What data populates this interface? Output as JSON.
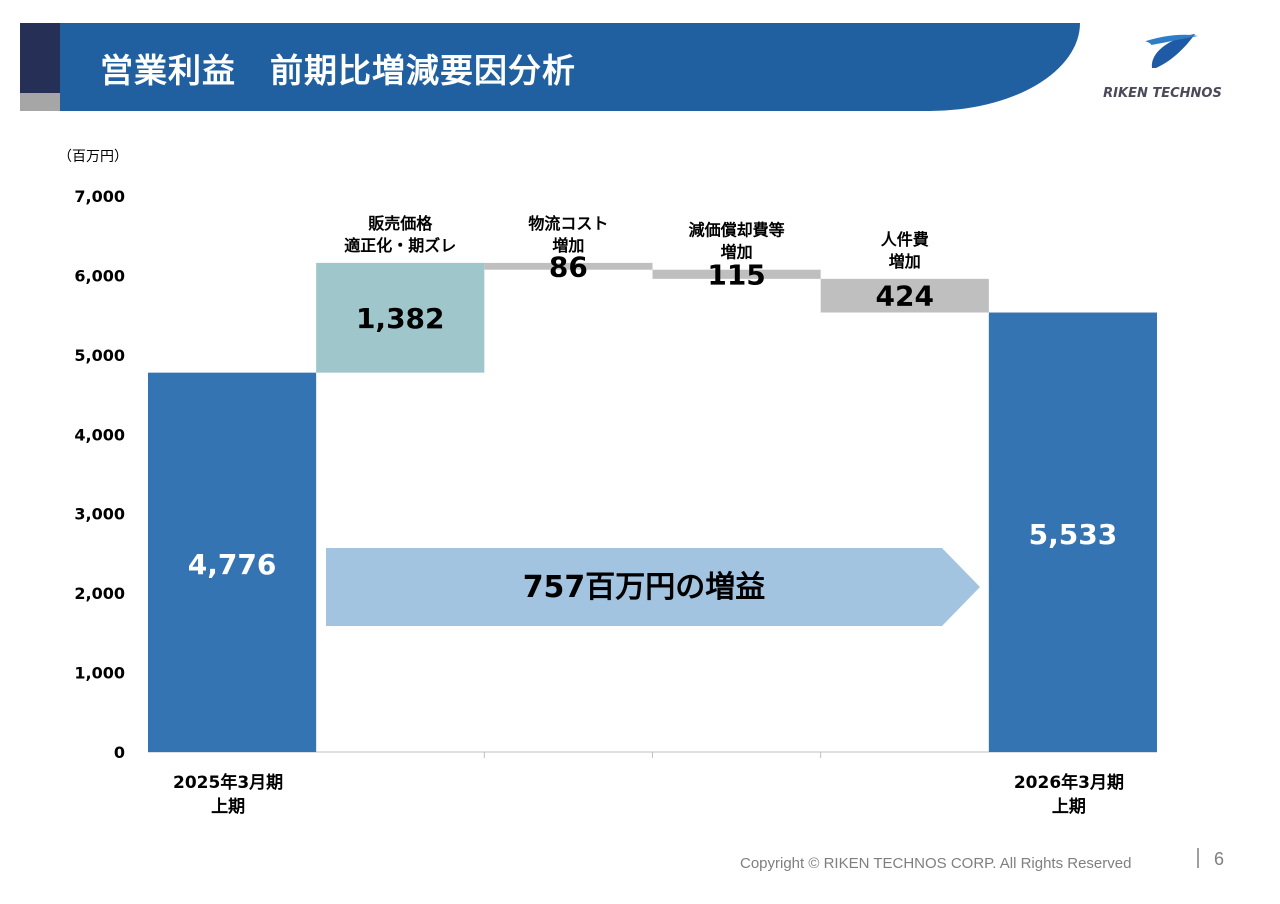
{
  "header": {
    "title": "営業利益　前期比増減要因分析",
    "logo_text": "RIKEN TECHNOS"
  },
  "colors": {
    "header": "#2060a0",
    "total_bar": "#3574b2",
    "increase_bar": "#9ec6cb",
    "decrease_bar": "#bfbfbf",
    "arrow": "#a3c4e0"
  },
  "chart_data": {
    "type": "waterfall",
    "unit_label": "（百万円）",
    "ylim": [
      0,
      7000
    ],
    "yticks": [
      0,
      1000,
      2000,
      3000,
      4000,
      5000,
      6000,
      7000
    ],
    "ytick_labels": [
      "0",
      "1,000",
      "2,000",
      "3,000",
      "4,000",
      "5,000",
      "6,000",
      "7,000"
    ],
    "steps": [
      {
        "kind": "total",
        "label": [
          "2025年3月期",
          "上期"
        ],
        "value": 4776,
        "value_label": "4,776"
      },
      {
        "kind": "increase",
        "label": [
          "販売価格",
          "適正化・期ズレ"
        ],
        "value": 1382,
        "value_label": "1,382"
      },
      {
        "kind": "decrease",
        "label": [
          "物流コスト",
          "増加"
        ],
        "value": -86,
        "value_label": "86"
      },
      {
        "kind": "decrease",
        "label": [
          "減価償却費等",
          "増加"
        ],
        "value": -115,
        "value_label": "115"
      },
      {
        "kind": "decrease",
        "label": [
          "人件費",
          "増加"
        ],
        "value": -424,
        "value_label": "424"
      },
      {
        "kind": "total",
        "label": [
          "2026年3月期",
          "上期"
        ],
        "value": 5533,
        "value_label": "5,533"
      }
    ],
    "annotation": "757百万円の増益"
  },
  "footer": {
    "copyright": "Copyright © RIKEN TECHNOS CORP. All Rights Reserved",
    "page_number": "6"
  }
}
